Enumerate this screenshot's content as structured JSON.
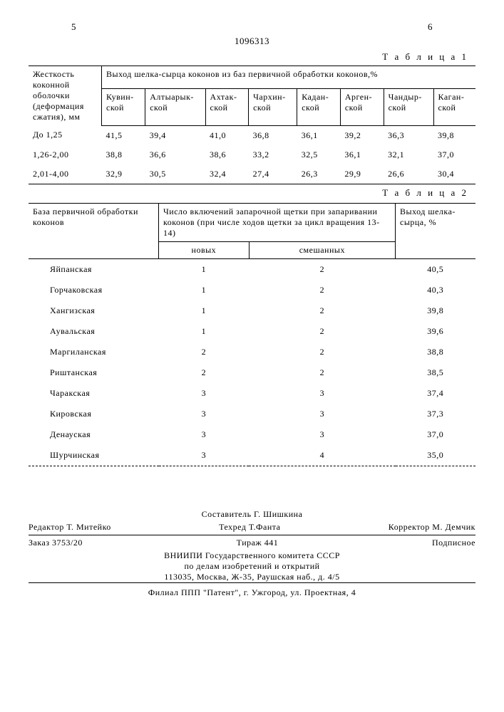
{
  "header": {
    "left_page": "5",
    "right_page": "6",
    "doc_number": "1096313"
  },
  "table1": {
    "label": "Т а б л и ц а 1",
    "row_header": "Жесткость коконной оболочки (деформация сжатия), мм",
    "main_header": "Выход шелка-сырца коконов из баз первичной обработки коконов,%",
    "columns": [
      "Кувин-ской",
      "Алтыарык-ской",
      "Ахтак-ской",
      "Чархин-ской",
      "Кадан-ской",
      "Арген-ской",
      "Чандыр-ской",
      "Каган-ской"
    ],
    "rows": [
      {
        "label": "До 1,25",
        "v": [
          "41,5",
          "39,4",
          "41,0",
          "36,8",
          "36,1",
          "39,2",
          "36,3",
          "39,8"
        ]
      },
      {
        "label": "1,26-2,00",
        "v": [
          "38,8",
          "36,6",
          "38,6",
          "33,2",
          "32,5",
          "36,1",
          "32,1",
          "37,0"
        ]
      },
      {
        "label": "2,01-4,00",
        "v": [
          "32,9",
          "30,5",
          "32,4",
          "27,4",
          "26,3",
          "29,9",
          "26,6",
          "30,4"
        ]
      }
    ]
  },
  "table2": {
    "label": "Т а б л и ц а 2",
    "col1_header": "База первичной обработки коконов",
    "col2_header": "Число включений  запарочной щетки при запаривании коконов (при числе ходов щетки за цикл вращения 13-14)",
    "col3_header": "Выход шелка-сырца, %",
    "sub_cols": [
      "новых",
      "смешанных"
    ],
    "rows": [
      {
        "name": "Яйпанская",
        "new": "1",
        "mix": "2",
        "out": "40,5"
      },
      {
        "name": "Горчаковская",
        "new": "1",
        "mix": "2",
        "out": "40,3"
      },
      {
        "name": "Хангизская",
        "new": "1",
        "mix": "2",
        "out": "39,8"
      },
      {
        "name": "Аувальская",
        "new": "1",
        "mix": "2",
        "out": "39,6"
      },
      {
        "name": "Маргиланская",
        "new": "2",
        "mix": "2",
        "out": "38,8"
      },
      {
        "name": "Риштанская",
        "new": "2",
        "mix": "2",
        "out": "38,5"
      },
      {
        "name": "Чаракская",
        "new": "3",
        "mix": "3",
        "out": "37,4"
      },
      {
        "name": "Кировская",
        "new": "3",
        "mix": "3",
        "out": "37,3"
      },
      {
        "name": "Денауская",
        "new": "3",
        "mix": "3",
        "out": "37,0"
      },
      {
        "name": "Шурчинская",
        "new": "3",
        "mix": "4",
        "out": "35,0"
      }
    ]
  },
  "footer": {
    "compiler": "Составитель Г. Шишкина",
    "editor": "Редактор Т. Митейко",
    "tech": "Техред Т.Фанта",
    "corrector": "Корректор М. Демчик",
    "order": "Заказ 3753/20",
    "tirazh": "Тираж 441",
    "podpis": "Подписное",
    "org1": "ВНИИПИ Государственного комитета СССР",
    "org2": "по делам изобретений и открытий",
    "addr1": "113035, Москва, Ж-35, Раушская наб., д. 4/5",
    "addr2": "Филиал ППП \"Патент\", г. Ужгород, ул. Проектная, 4"
  }
}
